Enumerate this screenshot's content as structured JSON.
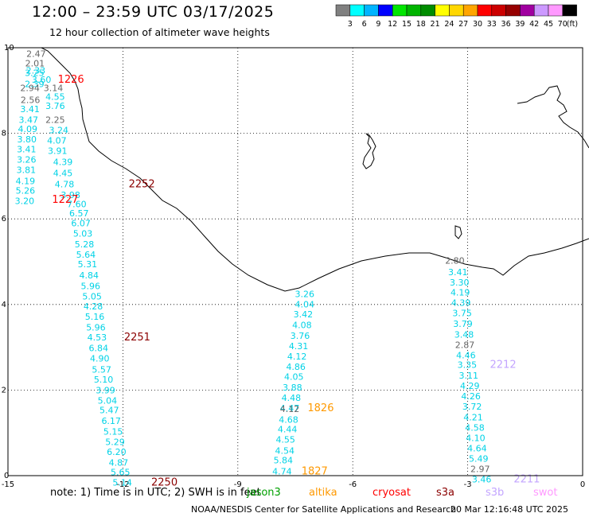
{
  "header": {
    "title": "12:00 – 23:59 UTC 03/17/2025",
    "subtitle": "12 hour collection of altimeter wave heights"
  },
  "colorbar": {
    "colors": [
      "#808080",
      "#00ffff",
      "#00b4ff",
      "#0000ff",
      "#00e600",
      "#00b400",
      "#008c00",
      "#ffff00",
      "#ffd700",
      "#ffa500",
      "#ff0000",
      "#cc0000",
      "#960000",
      "#a000a0",
      "#cc99ff",
      "#ff99ff",
      "#000000"
    ],
    "labels": [
      "3",
      "6",
      "9",
      "12",
      "15",
      "18",
      "21",
      "24",
      "27",
      "30",
      "33",
      "36",
      "39",
      "42",
      "45",
      "70"
    ],
    "unit": "(ft)"
  },
  "axes": {
    "x_ticks": [
      "-15",
      "-12",
      "-9",
      "-6",
      "-3",
      "0"
    ],
    "y_ticks": [
      "10",
      "8",
      "6",
      "4",
      "2",
      "0"
    ]
  },
  "tracks": {
    "colors": {
      "cyan": "#00d2e6",
      "gray": "#666666",
      "lav": "#c3a5ff",
      "red": "#ff0000",
      "darkred": "#8b0000",
      "orange": "#ff9900"
    },
    "labels": [
      {
        "t": "2.47",
        "lon": -14.52,
        "lat": 9.86,
        "c": "gray"
      },
      {
        "t": "2.01",
        "lon": -14.55,
        "lat": 9.64,
        "c": "gray"
      },
      {
        "t": "2.33",
        "lon": -14.53,
        "lat": 9.47,
        "c": "cyan"
      },
      {
        "t": "3.25",
        "lon": -14.56,
        "lat": 9.41,
        "c": "cyan"
      },
      {
        "t": "2.39",
        "lon": -14.56,
        "lat": 9.15,
        "c": "cyan"
      },
      {
        "t": "3.60",
        "lon": -14.38,
        "lat": 9.26,
        "c": "cyan"
      },
      {
        "t": "2.94",
        "lon": -14.68,
        "lat": 9.06,
        "c": "gray"
      },
      {
        "t": "3.14",
        "lon": -14.07,
        "lat": 9.06,
        "c": "gray"
      },
      {
        "t": "2.56",
        "lon": -14.67,
        "lat": 8.78,
        "c": "gray"
      },
      {
        "t": "4.55",
        "lon": -14.02,
        "lat": 8.86,
        "c": "cyan"
      },
      {
        "t": "3.41",
        "lon": -14.68,
        "lat": 8.57,
        "c": "cyan"
      },
      {
        "t": "3.76",
        "lon": -14.02,
        "lat": 8.64,
        "c": "cyan"
      },
      {
        "t": "3.47",
        "lon": -14.72,
        "lat": 8.32,
        "c": "cyan"
      },
      {
        "t": "2.25",
        "lon": -14.02,
        "lat": 8.32,
        "c": "gray"
      },
      {
        "t": "4.09",
        "lon": -14.74,
        "lat": 8.1,
        "c": "cyan"
      },
      {
        "t": "3.24",
        "lon": -13.93,
        "lat": 8.08,
        "c": "cyan"
      },
      {
        "t": "3.80",
        "lon": -14.76,
        "lat": 7.86,
        "c": "cyan"
      },
      {
        "t": "4.07",
        "lon": -13.98,
        "lat": 7.83,
        "c": "cyan"
      },
      {
        "t": "3.41",
        "lon": -14.77,
        "lat": 7.63,
        "c": "cyan"
      },
      {
        "t": "3.91",
        "lon": -13.96,
        "lat": 7.59,
        "c": "cyan"
      },
      {
        "t": "3.26",
        "lon": -14.77,
        "lat": 7.39,
        "c": "cyan"
      },
      {
        "t": "4.39",
        "lon": -13.82,
        "lat": 7.33,
        "c": "cyan"
      },
      {
        "t": "3.81",
        "lon": -14.78,
        "lat": 7.15,
        "c": "cyan"
      },
      {
        "t": "4.45",
        "lon": -13.82,
        "lat": 7.07,
        "c": "cyan"
      },
      {
        "t": "4.19",
        "lon": -14.8,
        "lat": 6.89,
        "c": "cyan"
      },
      {
        "t": "4.78",
        "lon": -13.78,
        "lat": 6.81,
        "c": "cyan"
      },
      {
        "t": "5.26",
        "lon": -14.8,
        "lat": 6.66,
        "c": "cyan"
      },
      {
        "t": "3.98",
        "lon": -13.62,
        "lat": 6.56,
        "c": "cyan"
      },
      {
        "t": "3.20",
        "lon": -14.82,
        "lat": 6.42,
        "c": "cyan"
      },
      {
        "t": "7.60",
        "lon": -13.46,
        "lat": 6.35,
        "c": "cyan"
      },
      {
        "t": "6.57",
        "lon": -13.4,
        "lat": 6.13,
        "c": "cyan"
      },
      {
        "t": "6.07",
        "lon": -13.35,
        "lat": 5.9,
        "c": "cyan"
      },
      {
        "t": "5.03",
        "lon": -13.3,
        "lat": 5.66,
        "c": "cyan"
      },
      {
        "t": "5.28",
        "lon": -13.26,
        "lat": 5.41,
        "c": "cyan"
      },
      {
        "t": "5.64",
        "lon": -13.22,
        "lat": 5.17,
        "c": "cyan"
      },
      {
        "t": "5.31",
        "lon": -13.18,
        "lat": 4.94,
        "c": "cyan"
      },
      {
        "t": "4.84",
        "lon": -13.14,
        "lat": 4.68,
        "c": "cyan"
      },
      {
        "t": "5.96",
        "lon": -13.1,
        "lat": 4.43,
        "c": "cyan"
      },
      {
        "t": "5.05",
        "lon": -13.06,
        "lat": 4.19,
        "c": "cyan"
      },
      {
        "t": "4.28",
        "lon": -13.03,
        "lat": 3.96,
        "c": "cyan"
      },
      {
        "t": "5.16",
        "lon": -12.99,
        "lat": 3.72,
        "c": "cyan"
      },
      {
        "t": "5.96",
        "lon": -12.96,
        "lat": 3.47,
        "c": "cyan"
      },
      {
        "t": "4.53",
        "lon": -12.93,
        "lat": 3.23,
        "c": "cyan"
      },
      {
        "t": "6.84",
        "lon": -12.89,
        "lat": 2.98,
        "c": "cyan"
      },
      {
        "t": "4.90",
        "lon": -12.86,
        "lat": 2.74,
        "c": "cyan"
      },
      {
        "t": "5.57",
        "lon": -12.81,
        "lat": 2.48,
        "c": "cyan"
      },
      {
        "t": "5.10",
        "lon": -12.76,
        "lat": 2.25,
        "c": "cyan"
      },
      {
        "t": "3.99",
        "lon": -12.71,
        "lat": 2.0,
        "c": "cyan"
      },
      {
        "t": "5.04",
        "lon": -12.66,
        "lat": 1.76,
        "c": "cyan"
      },
      {
        "t": "5.47",
        "lon": -12.61,
        "lat": 1.53,
        "c": "cyan"
      },
      {
        "t": "6.17",
        "lon": -12.56,
        "lat": 1.28,
        "c": "cyan"
      },
      {
        "t": "5.15",
        "lon": -12.51,
        "lat": 1.03,
        "c": "cyan"
      },
      {
        "t": "5.29",
        "lon": -12.46,
        "lat": 0.79,
        "c": "cyan"
      },
      {
        "t": "6.20",
        "lon": -12.42,
        "lat": 0.56,
        "c": "cyan"
      },
      {
        "t": "4.87",
        "lon": -12.37,
        "lat": 0.31,
        "c": "cyan"
      },
      {
        "t": "5.65",
        "lon": -12.32,
        "lat": 0.08,
        "c": "cyan"
      },
      {
        "t": "5.14",
        "lon": -12.27,
        "lat": -0.16,
        "c": "cyan"
      },
      {
        "t": "1226",
        "lon": -13.7,
        "lat": 9.26,
        "c": "red",
        "big": true
      },
      {
        "t": "2252",
        "lon": -11.85,
        "lat": 6.81,
        "c": "darkred",
        "big": true
      },
      {
        "t": "1227",
        "lon": -13.85,
        "lat": 6.45,
        "c": "red",
        "big": true
      },
      {
        "t": "2251",
        "lon": -11.97,
        "lat": 3.23,
        "c": "darkred",
        "big": true
      },
      {
        "t": "2250",
        "lon": -11.26,
        "lat": -0.16,
        "c": "darkred",
        "big": true
      },
      {
        "t": "3.26",
        "lon": -7.51,
        "lat": 4.25,
        "c": "cyan"
      },
      {
        "t": "4.04",
        "lon": -7.51,
        "lat": 4.01,
        "c": "cyan"
      },
      {
        "t": "3.42",
        "lon": -7.55,
        "lat": 3.77,
        "c": "cyan"
      },
      {
        "t": "4.08",
        "lon": -7.58,
        "lat": 3.52,
        "c": "cyan"
      },
      {
        "t": "3.76",
        "lon": -7.63,
        "lat": 3.27,
        "c": "cyan"
      },
      {
        "t": "4.31",
        "lon": -7.67,
        "lat": 3.03,
        "c": "cyan"
      },
      {
        "t": "4.12",
        "lon": -7.71,
        "lat": 2.79,
        "c": "cyan"
      },
      {
        "t": "4.86",
        "lon": -7.74,
        "lat": 2.55,
        "c": "cyan"
      },
      {
        "t": "4.05",
        "lon": -7.79,
        "lat": 2.31,
        "c": "cyan"
      },
      {
        "t": "3.88",
        "lon": -7.83,
        "lat": 2.06,
        "c": "cyan"
      },
      {
        "t": "4.48",
        "lon": -7.86,
        "lat": 1.82,
        "c": "cyan"
      },
      {
        "t": "4.47",
        "lon": -7.9,
        "lat": 1.58,
        "c": "cyan"
      },
      {
        "t": "4.12",
        "lon": -7.9,
        "lat": 1.56,
        "c": "gray"
      },
      {
        "t": "4.68",
        "lon": -7.93,
        "lat": 1.31,
        "c": "cyan"
      },
      {
        "t": "4.44",
        "lon": -7.96,
        "lat": 1.09,
        "c": "cyan"
      },
      {
        "t": "4.55",
        "lon": -8.01,
        "lat": 0.85,
        "c": "cyan"
      },
      {
        "t": "4.54",
        "lon": -8.03,
        "lat": 0.59,
        "c": "cyan"
      },
      {
        "t": "5.84",
        "lon": -8.07,
        "lat": 0.36,
        "c": "cyan"
      },
      {
        "t": "4.74",
        "lon": -8.1,
        "lat": 0.1,
        "c": "cyan"
      },
      {
        "t": "1826",
        "lon": -7.18,
        "lat": 1.58,
        "c": "orange",
        "big": true
      },
      {
        "t": "1827",
        "lon": -7.34,
        "lat": 0.1,
        "c": "orange",
        "big": true
      },
      {
        "t": "2.80",
        "lon": -3.59,
        "lat": 5.03,
        "c": "gray"
      },
      {
        "t": "3.41",
        "lon": -3.51,
        "lat": 4.76,
        "c": "cyan"
      },
      {
        "t": "3.30",
        "lon": -3.47,
        "lat": 4.52,
        "c": "cyan"
      },
      {
        "t": "4.19",
        "lon": -3.45,
        "lat": 4.28,
        "c": "cyan"
      },
      {
        "t": "4.39",
        "lon": -3.43,
        "lat": 4.04,
        "c": "cyan"
      },
      {
        "t": "3.75",
        "lon": -3.4,
        "lat": 3.8,
        "c": "cyan"
      },
      {
        "t": "3.79",
        "lon": -3.38,
        "lat": 3.55,
        "c": "cyan"
      },
      {
        "t": "3.48",
        "lon": -3.35,
        "lat": 3.3,
        "c": "cyan"
      },
      {
        "t": "2.87",
        "lon": -3.33,
        "lat": 3.06,
        "c": "gray"
      },
      {
        "t": "4.46",
        "lon": -3.3,
        "lat": 2.82,
        "c": "cyan"
      },
      {
        "t": "3.35",
        "lon": -3.27,
        "lat": 2.59,
        "c": "cyan"
      },
      {
        "t": "3.11",
        "lon": -3.23,
        "lat": 2.34,
        "c": "cyan"
      },
      {
        "t": "4.29",
        "lon": -3.2,
        "lat": 2.1,
        "c": "cyan"
      },
      {
        "t": "4.26",
        "lon": -3.17,
        "lat": 1.86,
        "c": "cyan"
      },
      {
        "t": "3.72",
        "lon": -3.14,
        "lat": 1.62,
        "c": "cyan"
      },
      {
        "t": "4.21",
        "lon": -3.11,
        "lat": 1.37,
        "c": "cyan"
      },
      {
        "t": "4.58",
        "lon": -3.07,
        "lat": 1.12,
        "c": "cyan"
      },
      {
        "t": "4.10",
        "lon": -3.05,
        "lat": 0.88,
        "c": "cyan"
      },
      {
        "t": "4.64",
        "lon": -3.01,
        "lat": 0.64,
        "c": "cyan"
      },
      {
        "t": "5.49",
        "lon": -2.97,
        "lat": 0.4,
        "c": "cyan"
      },
      {
        "t": "2.97",
        "lon": -2.93,
        "lat": 0.16,
        "c": "gray"
      },
      {
        "t": "3.46",
        "lon": -2.89,
        "lat": -0.08,
        "c": "cyan"
      },
      {
        "t": "2212",
        "lon": -2.42,
        "lat": 2.59,
        "c": "lav",
        "big": true
      },
      {
        "t": "2211",
        "lon": -1.8,
        "lat": -0.08,
        "c": "lav",
        "big": true
      }
    ]
  },
  "footer": {
    "note": "note: 1) Time is in UTC; 2) SWH is in feet",
    "satellites": [
      {
        "label": "jason3",
        "color": "#00a000"
      },
      {
        "label": "altika",
        "color": "#ff9900"
      },
      {
        "label": "cryosat",
        "color": "#ff0000"
      },
      {
        "label": "s3a",
        "color": "#8b0000"
      },
      {
        "label": "s3b",
        "color": "#c3a5ff"
      },
      {
        "label": "swot",
        "color": "#ff99ff"
      }
    ],
    "credit": "NOAA/NESDIS Center for Satellite Applications and Research",
    "timestamp": "20 Mar 12:16:48 UTC 2025"
  }
}
